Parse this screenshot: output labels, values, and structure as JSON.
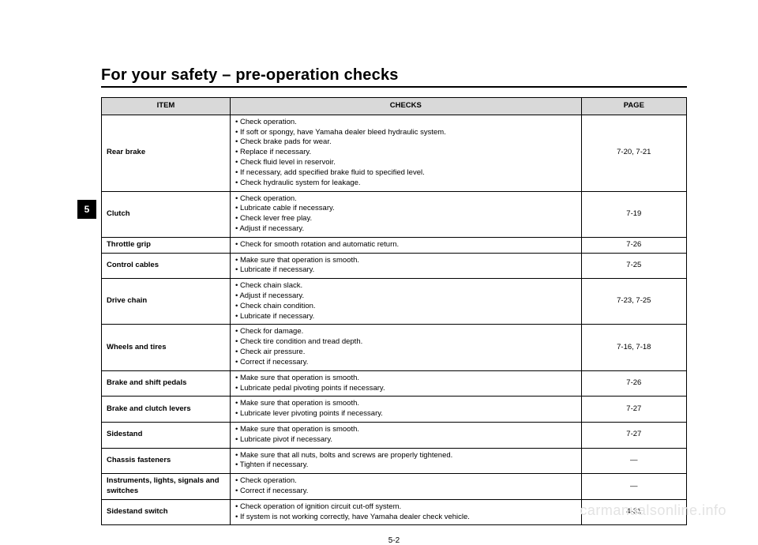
{
  "page": {
    "title": "For your safety – pre-operation checks",
    "section_number": "5",
    "footer": "5-2",
    "watermark": "carmanualsonline.info"
  },
  "table": {
    "headers": {
      "item": "ITEM",
      "checks": "CHECKS",
      "page": "PAGE"
    },
    "rows": [
      {
        "item": "Rear brake",
        "checks": [
          "Check operation.",
          "If soft or spongy, have Yamaha dealer bleed hydraulic system.",
          "Check brake pads for wear.",
          "Replace if necessary.",
          "Check fluid level in reservoir.",
          "If necessary, add specified brake fluid to specified level.",
          "Check hydraulic system for leakage."
        ],
        "page": "7-20, 7-21"
      },
      {
        "item": "Clutch",
        "checks": [
          "Check operation.",
          "Lubricate cable if necessary.",
          "Check lever free play.",
          "Adjust if necessary."
        ],
        "page": "7-19"
      },
      {
        "item": "Throttle grip",
        "checks": [
          "Check for smooth rotation and automatic return."
        ],
        "page": "7-26"
      },
      {
        "item": "Control cables",
        "checks": [
          "Make sure that operation is smooth.",
          "Lubricate if necessary."
        ],
        "page": "7-25"
      },
      {
        "item": "Drive chain",
        "checks": [
          "Check chain slack.",
          "Adjust if necessary.",
          "Check chain condition.",
          "Lubricate if necessary."
        ],
        "page": "7-23, 7-25"
      },
      {
        "item": "Wheels and tires",
        "checks": [
          "Check for damage.",
          "Check tire condition and tread depth.",
          "Check air pressure.",
          "Correct if necessary."
        ],
        "page": "7-16, 7-18"
      },
      {
        "item": "Brake and shift pedals",
        "checks": [
          "Make sure that operation is smooth.",
          "Lubricate pedal pivoting points if necessary."
        ],
        "page": "7-26"
      },
      {
        "item": "Brake and clutch levers",
        "checks": [
          "Make sure that operation is smooth.",
          "Lubricate lever pivoting points if necessary."
        ],
        "page": "7-27"
      },
      {
        "item": "Sidestand",
        "checks": [
          "Make sure that operation is smooth.",
          "Lubricate pivot if necessary."
        ],
        "page": "7-27"
      },
      {
        "item": "Chassis fasteners",
        "checks": [
          "Make sure that all nuts, bolts and screws are properly tightened.",
          "Tighten if necessary."
        ],
        "page": "—"
      },
      {
        "item": "Instruments, lights, signals and switches",
        "checks": [
          "Check operation.",
          "Correct if necessary."
        ],
        "page": "—"
      },
      {
        "item": "Sidestand switch",
        "checks": [
          "Check operation of ignition circuit cut-off system.",
          "If system is not working correctly, have Yamaha dealer check vehicle."
        ],
        "page": "4-31"
      }
    ]
  }
}
